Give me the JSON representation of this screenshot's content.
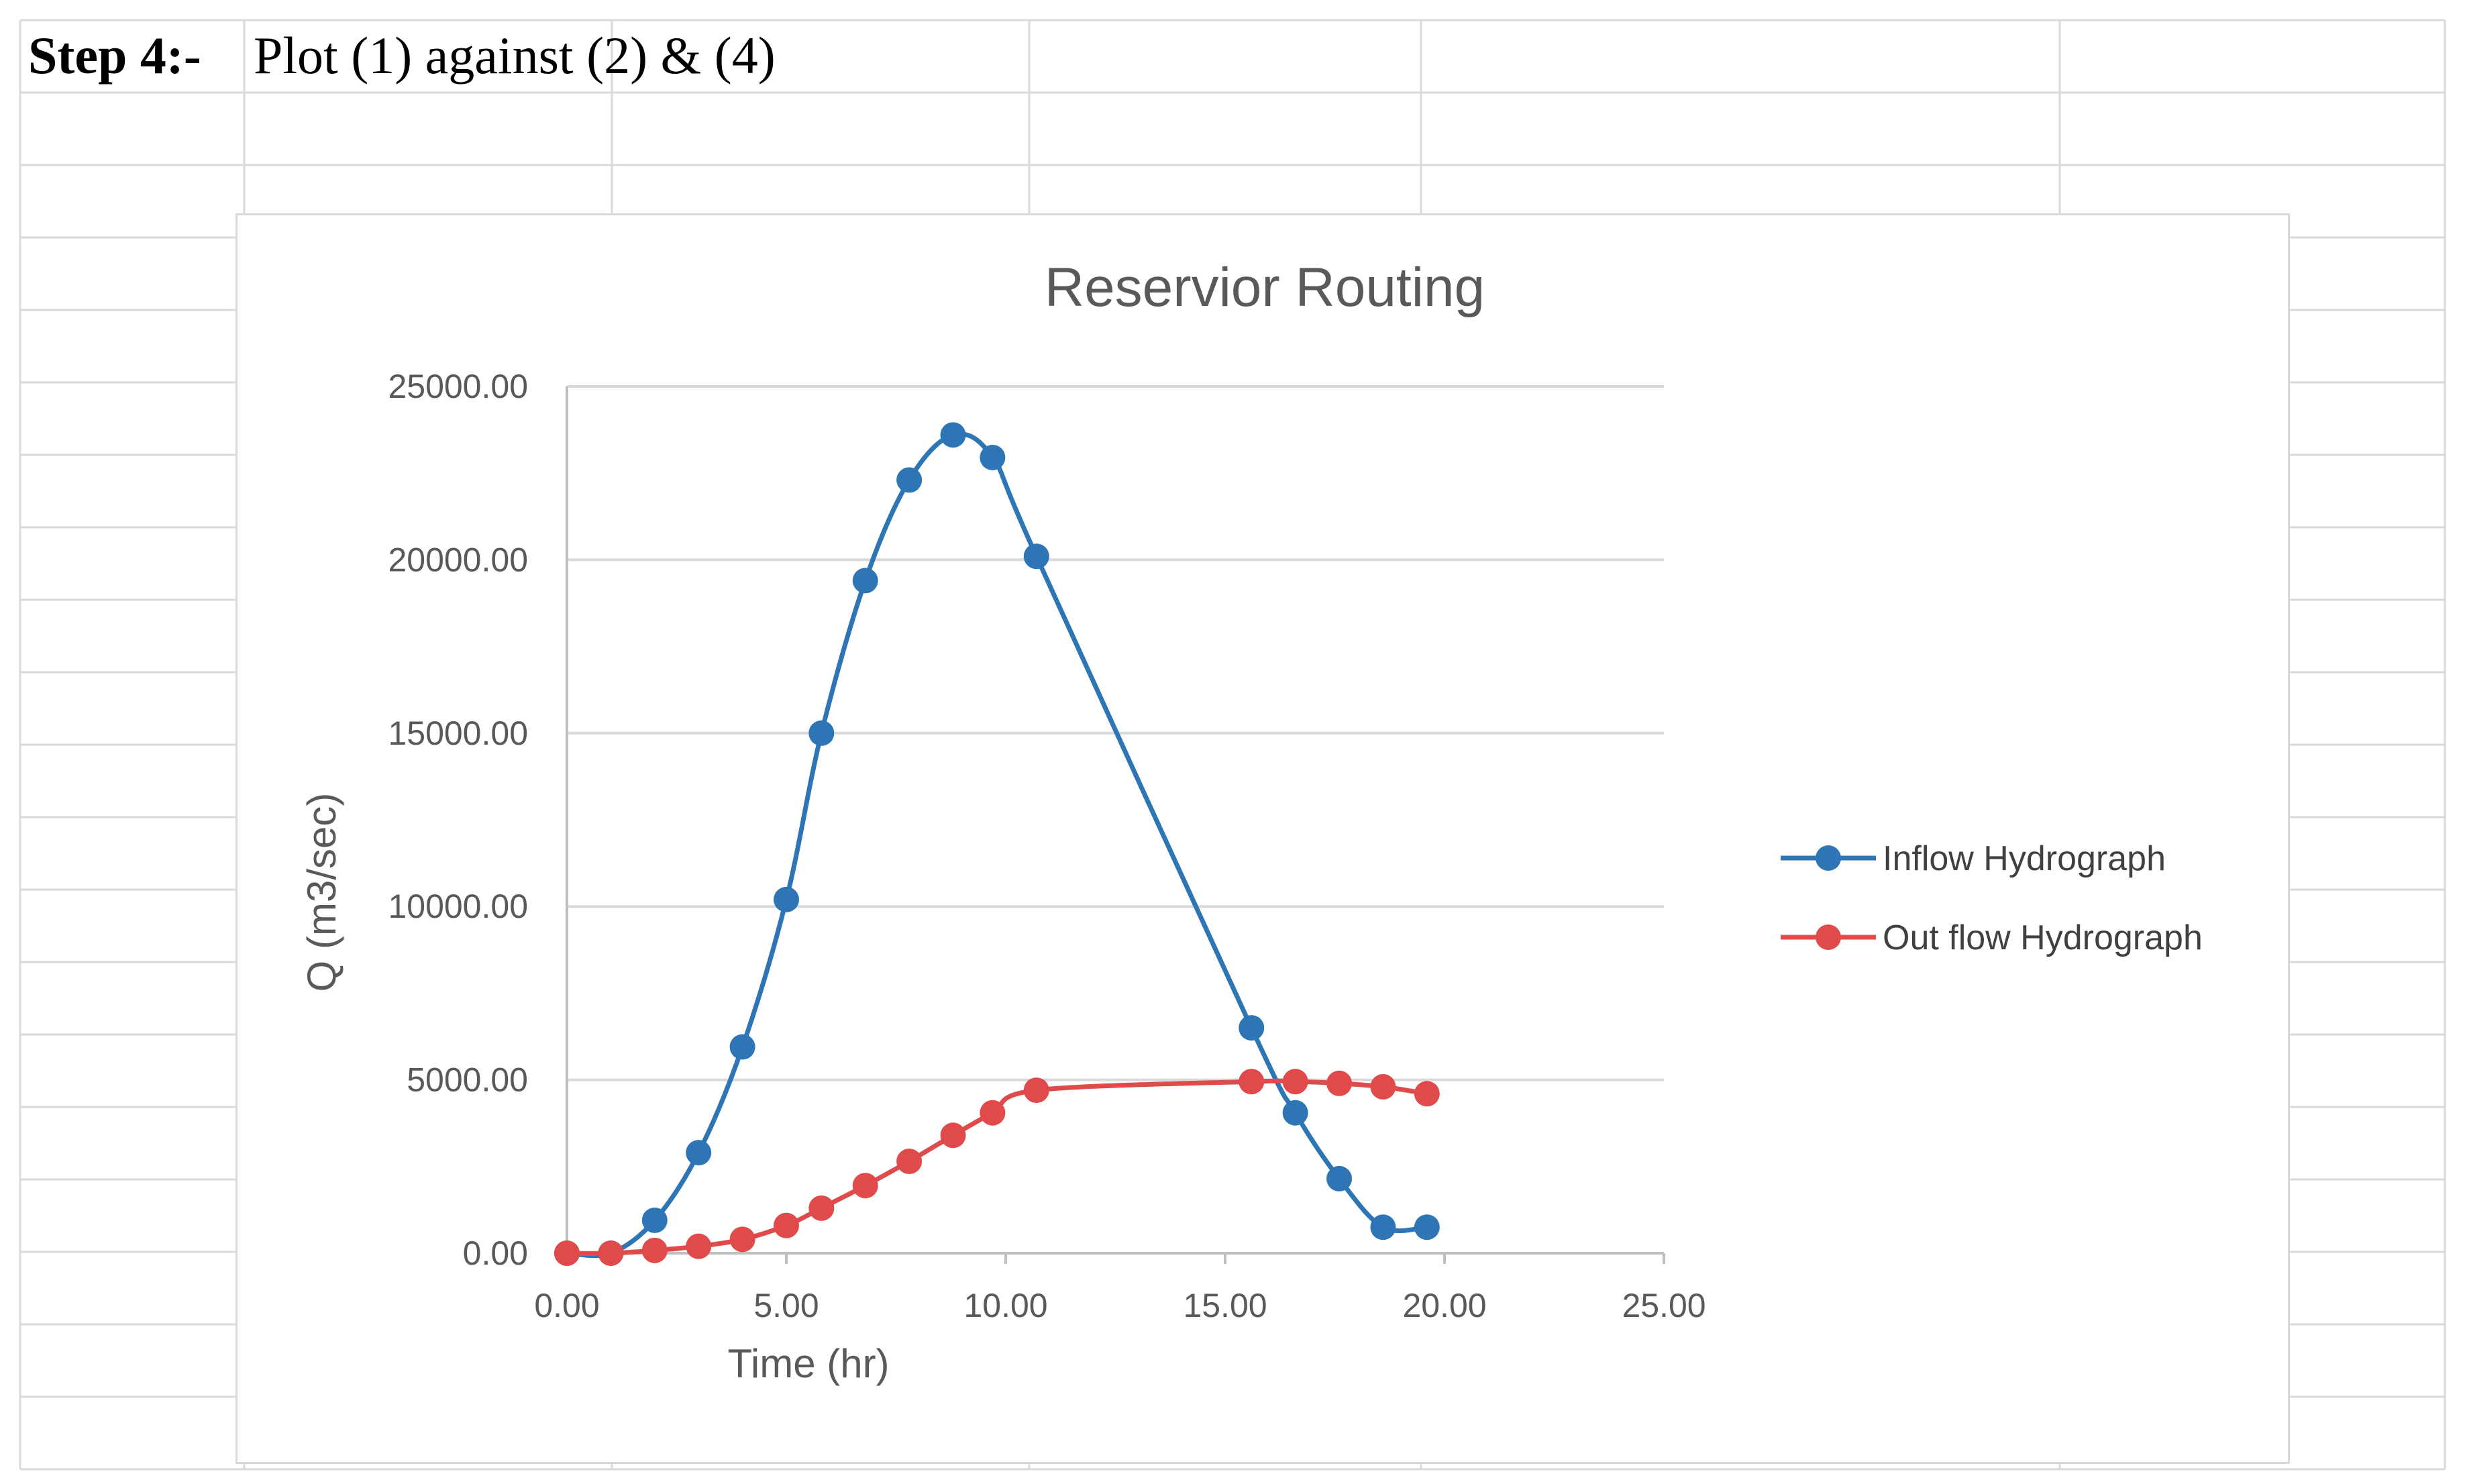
{
  "heading": {
    "step_label": "Step 4:-",
    "step_text": "Plot (1) against (2) & (4)"
  },
  "chart_data": {
    "type": "line",
    "title": "Reservior Routing",
    "xlabel": "Time (hr)",
    "ylabel": "Q (m3/sec)",
    "xlim": [
      0,
      25
    ],
    "ylim": [
      0,
      25000
    ],
    "x_ticks": [
      "0.00",
      "5.00",
      "10.00",
      "15.00",
      "20.00",
      "25.00"
    ],
    "y_ticks": [
      "0.00",
      "5000.00",
      "10000.00",
      "15000.00",
      "20000.00",
      "25000.00"
    ],
    "grid": true,
    "smooth": true,
    "legend_position": "right",
    "series": [
      {
        "name": "Inflow Hydrograph",
        "color": "#2e75b6",
        "x": [
          0,
          1,
          2,
          3,
          4,
          5,
          5.8,
          6.8,
          7.8,
          8.8,
          9.7,
          10.7,
          15.6,
          16.6,
          17.6,
          18.6,
          19.6
        ],
        "y": [
          0,
          0,
          950,
          2900,
          5950,
          10200,
          15000,
          19400,
          22300,
          23600,
          22950,
          20100,
          6500,
          4050,
          2150,
          750,
          750
        ]
      },
      {
        "name": "Out flow Hydrograph",
        "color": "#e04a4a",
        "x": [
          0,
          1,
          2,
          3,
          4,
          5,
          5.8,
          6.8,
          7.8,
          8.8,
          9.7,
          10.7,
          15.6,
          16.6,
          17.6,
          18.6,
          19.6
        ],
        "y": [
          0,
          0,
          80,
          200,
          400,
          800,
          1300,
          1950,
          2650,
          3400,
          4050,
          4700,
          4950,
          4950,
          4900,
          4800,
          4600
        ]
      }
    ]
  }
}
